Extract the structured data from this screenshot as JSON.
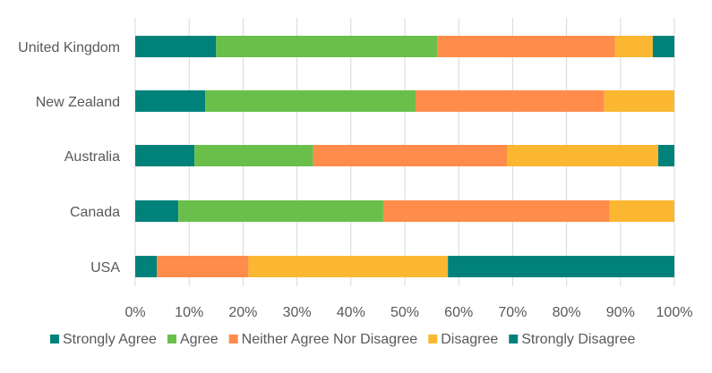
{
  "chart_data": {
    "type": "bar",
    "orientation": "horizontal",
    "stacked": "percent",
    "categories": [
      "United Kingdom",
      "New Zealand",
      "Australia",
      "Canada",
      "USA"
    ],
    "series": [
      {
        "name": "Strongly Agree",
        "color": "#00827a",
        "values": [
          15,
          13,
          11,
          8,
          4
        ]
      },
      {
        "name": "Agree",
        "color": "#6abf4b",
        "values": [
          41,
          39,
          22,
          38,
          0
        ]
      },
      {
        "name": "Neither Agree Nor Disagree",
        "color": "#ff8c4b",
        "values": [
          33,
          35,
          36,
          42,
          17
        ]
      },
      {
        "name": "Disagree",
        "color": "#fbb731",
        "values": [
          7,
          13,
          28,
          12,
          37
        ]
      },
      {
        "name": "Strongly Disagree",
        "color": "#00827a",
        "values": [
          4,
          0,
          3,
          0,
          42
        ]
      }
    ],
    "x_ticks": [
      "0%",
      "10%",
      "20%",
      "30%",
      "40%",
      "50%",
      "60%",
      "70%",
      "80%",
      "90%",
      "100%"
    ],
    "xlim": [
      0,
      100
    ],
    "grid": "vertical",
    "legend": "bottom"
  }
}
